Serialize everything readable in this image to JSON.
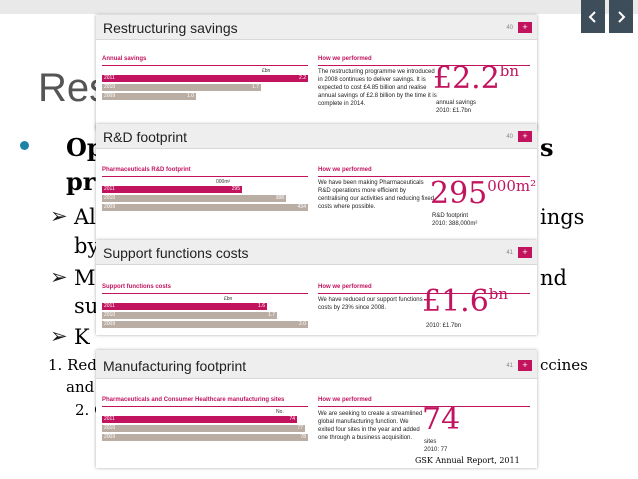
{
  "slide": {
    "title": "Rest",
    "bullet1_a": "Op",
    "bullet1_end": "s",
    "bullet1_b": "pro",
    "sub_a1": "Al",
    "sub_a2": "ings",
    "sub_a3": "by",
    "sub_b1": "M",
    "sub_b2": "nd",
    "sub_b3": "su",
    "sub_c1": "K",
    "line_1_start": "1. Red",
    "line_1_end": "ccines",
    "line_1_cont": "and",
    "line_2": "2. C",
    "arrow": "➢"
  },
  "source": "GSK Annual Report, 2011",
  "colors": {
    "accent": "#c2135f",
    "bar_prior": "#b9ada4",
    "nav": "#3d4d59"
  },
  "nav": {
    "prev_icon": "chevron-left-icon",
    "next_icon": "chevron-right-icon"
  },
  "cards": [
    {
      "title": "Restructuring savings",
      "page": "40",
      "chart_title": "Annual savings",
      "unit": "£bn",
      "perf_title": "How we performed",
      "description": "The restructuring programme we introduced in 2008 continues to deliver savings. It is expected to cost £4.85 billion and realise annual savings of £2.8 billion by the time it is complete in 2014.",
      "big_value": "£2.2",
      "big_suffix": "bn",
      "caption": "annual savings",
      "comparison": "2010: £1.7bn",
      "bars": [
        {
          "year": "2011",
          "label": "2.2",
          "value": 2.2
        },
        {
          "year": "2010",
          "label": "1.7",
          "value": 1.7
        },
        {
          "year": "2009",
          "label": "1.0",
          "value": 1.0
        }
      ],
      "max": 2.2
    },
    {
      "title": "R&D footprint",
      "page": "40",
      "chart_title": "Pharmaceuticals R&D footprint",
      "unit": "000m²",
      "perf_title": "How we performed",
      "description": "We have been making Pharmaceuticals R&D operations more efficient by centralising our activities and reducing fixed costs where possible.",
      "big_value": "295",
      "big_suffix": "000m²",
      "caption": "R&D footprint",
      "comparison": "2010: 388,000m²",
      "bars": [
        {
          "year": "2011",
          "label": "295",
          "value": 295
        },
        {
          "year": "2010",
          "label": "388",
          "value": 388
        },
        {
          "year": "2009",
          "label": "434",
          "value": 434
        }
      ],
      "max": 434
    },
    {
      "title": "Support functions costs",
      "page": "41",
      "chart_title": "Support functions costs",
      "unit": "£bn",
      "perf_title": "How we performed",
      "description": "We have reduced our support functions costs by 23% since 2008.",
      "big_value": "£1.6",
      "big_suffix": "bn",
      "caption": "",
      "comparison": "2010: £1.7bn",
      "bars": [
        {
          "year": "2011",
          "label": "1.6",
          "value": 1.6
        },
        {
          "year": "2010",
          "label": "1.7",
          "value": 1.7
        },
        {
          "year": "2009",
          "label": "2.0",
          "value": 2.0
        }
      ],
      "max": 2.0
    },
    {
      "title": "Manufacturing footprint",
      "page": "41",
      "chart_title": "Pharmaceuticals and Consumer Healthcare manufacturing sites",
      "unit": "No.",
      "perf_title": "How we performed",
      "description": "We are seeking to create a streamlined global manufacturing function. We exited four sites in the year and added one through a business acquisition.",
      "big_value": "74",
      "big_suffix": "",
      "caption": "sites",
      "comparison": "2010: 77",
      "bars": [
        {
          "year": "2011",
          "label": "74",
          "value": 74
        },
        {
          "year": "2010",
          "label": "77",
          "value": 77
        },
        {
          "year": "2009",
          "label": "78",
          "value": 78
        }
      ],
      "max": 78
    }
  ]
}
